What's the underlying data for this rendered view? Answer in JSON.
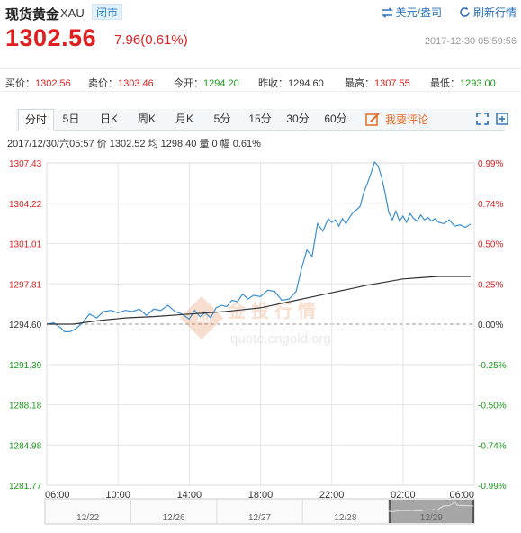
{
  "header": {
    "title": "现货黄金",
    "symbol": "XAU",
    "status": "闭市",
    "currency_toggle": "美元/盎司",
    "refresh": "刷新行情",
    "price": "1302.56",
    "change": "7.96(0.61%)",
    "timestamp": "2017-12-30 05:59:56"
  },
  "stats": [
    {
      "label": "买价：",
      "value": "1302.56",
      "trend": "up"
    },
    {
      "label": "卖价：",
      "value": "1303.46",
      "trend": "up"
    },
    {
      "label": "今开：",
      "value": "1294.20",
      "trend": "down"
    },
    {
      "label": "昨收：",
      "value": "1294.60",
      "trend": "flat"
    },
    {
      "label": "最高：",
      "value": "1307.55",
      "trend": "up"
    },
    {
      "label": "最低：",
      "value": "1293.00",
      "trend": "down"
    }
  ],
  "tabs": [
    "分时",
    "5日",
    "日K",
    "周K",
    "月K",
    "5分",
    "15分",
    "30分",
    "60分"
  ],
  "active_tab": 0,
  "comment_button": "我要评论",
  "info_line": "2017/12/30/六05:57  价 1302.52  均 1298.40  量 0  幅 0.61%",
  "watermark": {
    "text": "金投行情",
    "url": "quote.cngold.org",
    "badge": "Au"
  },
  "colors": {
    "up": "#e02020",
    "down": "#1a9a1a",
    "price_line": "#3b8fd0",
    "avg_line": "#333333",
    "grid": "#e6e6e6"
  },
  "chart_data": {
    "type": "line",
    "title": "",
    "xlabel": "",
    "ylabel": "",
    "x_ticks": [
      "06:00",
      "10:00",
      "14:00",
      "18:00",
      "22:00",
      "02:00",
      "06:00"
    ],
    "x_range_hours": [
      0,
      24
    ],
    "y_ticks_left": [
      "1307.43",
      "1304.22",
      "1301.01",
      "1297.81",
      "1294.60",
      "1291.39",
      "1288.18",
      "1284.98",
      "1281.77"
    ],
    "y_ticks_right": [
      "0.99%",
      "0.74%",
      "0.50%",
      "0.25%",
      "0.00%",
      "-0.25%",
      "-0.50%",
      "-0.74%",
      "-0.99%"
    ],
    "ylim": [
      1281.77,
      1307.43
    ],
    "reference_value": 1294.6,
    "series": [
      {
        "name": "价",
        "x": [
          0,
          0.4,
          0.8,
          1.0,
          1.3,
          1.6,
          2.0,
          2.4,
          2.8,
          3.2,
          3.6,
          4.0,
          4.4,
          4.8,
          5.2,
          5.6,
          6.0,
          6.4,
          6.8,
          7.2,
          7.6,
          8.0,
          8.3,
          8.6,
          8.9,
          9.2,
          9.5,
          9.8,
          10.1,
          10.4,
          10.7,
          11.0,
          11.3,
          11.6,
          12.0,
          12.4,
          12.8,
          13.2,
          13.6,
          14.0,
          14.3,
          14.6,
          14.9,
          15.2,
          15.5,
          15.8,
          16.0,
          16.2,
          16.4,
          16.6,
          16.8,
          17.0,
          17.2,
          17.4,
          17.6,
          17.8,
          18.0,
          18.2,
          18.4,
          18.6,
          18.8,
          19.0,
          19.2,
          19.4,
          19.6,
          19.8,
          20.0,
          20.2,
          20.4,
          20.6,
          20.8,
          21.0,
          21.2,
          21.4,
          21.6,
          21.8,
          22.0,
          22.3,
          22.6,
          22.9,
          23.2,
          23.5,
          23.8
        ],
        "values": [
          1294.6,
          1294.7,
          1294.3,
          1294.0,
          1294.0,
          1294.2,
          1294.7,
          1295.4,
          1295.1,
          1295.6,
          1295.7,
          1295.5,
          1295.7,
          1295.6,
          1295.8,
          1295.3,
          1295.8,
          1295.7,
          1296.1,
          1295.6,
          1295.4,
          1295.0,
          1295.7,
          1295.2,
          1295.5,
          1295.1,
          1295.9,
          1296.1,
          1296.0,
          1296.5,
          1296.4,
          1297.0,
          1296.6,
          1296.9,
          1296.8,
          1297.3,
          1297.2,
          1296.5,
          1296.6,
          1297.2,
          1299.0,
          1300.5,
          1300.0,
          1302.6,
          1302.0,
          1303.0,
          1302.7,
          1302.9,
          1302.4,
          1303.0,
          1302.6,
          1303.1,
          1303.5,
          1303.7,
          1304.0,
          1305.1,
          1305.8,
          1306.6,
          1307.5,
          1307.2,
          1306.3,
          1305.0,
          1303.5,
          1302.9,
          1303.6,
          1302.8,
          1303.2,
          1302.7,
          1303.4,
          1303.0,
          1302.8,
          1303.3,
          1302.9,
          1303.1,
          1302.8,
          1303.0,
          1302.7,
          1302.6,
          1302.9,
          1302.4,
          1302.5,
          1302.3,
          1302.56
        ]
      },
      {
        "name": "均",
        "x": [
          0,
          1.5,
          3.0,
          4.5,
          6.0,
          8.0,
          10.0,
          12.0,
          13.0,
          14.0,
          15.0,
          16.0,
          17.0,
          18.0,
          19.0,
          20.0,
          21.0,
          22.0,
          23.0,
          23.8
        ],
        "values": [
          1294.6,
          1294.6,
          1294.9,
          1295.1,
          1295.2,
          1295.4,
          1295.6,
          1295.9,
          1296.2,
          1296.5,
          1296.8,
          1297.1,
          1297.4,
          1297.7,
          1297.95,
          1298.2,
          1298.3,
          1298.4,
          1298.4,
          1298.4
        ]
      }
    ],
    "navigator": {
      "dates": [
        "12/22",
        "12/26",
        "12/27",
        "12/28",
        "12/29"
      ],
      "selected": "12/29"
    }
  }
}
